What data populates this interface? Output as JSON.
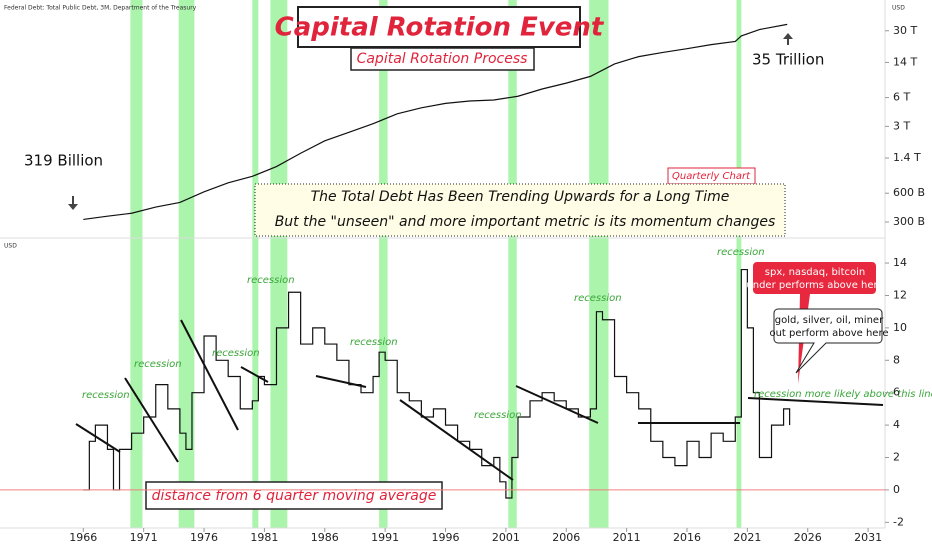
{
  "header": {
    "source": "Federal Debt: Total Public Debt, 3M, Department of the Treasury",
    "currency_top": "USD",
    "currency_bottom": "USD",
    "title": "Capital Rotation Event",
    "subtitle": "Capital Rotation Process"
  },
  "annotations": {
    "start_label": "319 Billion",
    "end_label": "35 Trillion",
    "period": "Quarterly Chart",
    "note_lines": [
      "The Total Debt Has Been Trending Upwards for a Long Time",
      "But the \"unseen\" and more important metric is its momentum changes"
    ],
    "oscillator_label": "distance from 6 quarter moving average",
    "recession_labels": [
      "recession",
      "recession",
      "recession",
      "recession",
      "recession",
      "recession",
      "recession",
      "recession"
    ],
    "threshold_label": "recession more likely above this line",
    "red_callout": [
      "spx, nasdaq, bitcoin",
      "under performs above here"
    ],
    "white_callout": [
      "gold, silver, oil, miner",
      "out perform above here"
    ]
  },
  "chart_data": [
    {
      "type": "line",
      "log_scale": true,
      "color": "#111111",
      "xlim": [
        1959.1,
        2032.4
      ],
      "ylim": [
        0.214,
        60
      ],
      "yticks": [
        {
          "value": 0.3,
          "label": "300 B"
        },
        {
          "value": 0.6,
          "label": "600 B"
        },
        {
          "value": 1.4,
          "label": "1.4 T"
        },
        {
          "value": 3,
          "label": "3 T"
        },
        {
          "value": 6,
          "label": "6 T"
        },
        {
          "value": 14,
          "label": "14 T"
        },
        {
          "value": 30,
          "label": "30 T"
        }
      ],
      "x": [
        1966,
        1968,
        1970,
        1972,
        1974,
        1976,
        1978,
        1980,
        1982,
        1984,
        1986,
        1988,
        1990,
        1992,
        1994,
        1996,
        1998,
        2000,
        2002,
        2004,
        2006,
        2008,
        2010,
        2012,
        2014,
        2016,
        2018,
        2020,
        2020.5,
        2022,
        2024.3
      ],
      "values": [
        0.319,
        0.345,
        0.37,
        0.43,
        0.48,
        0.62,
        0.77,
        0.9,
        1.14,
        1.57,
        2.12,
        2.6,
        3.2,
        4.06,
        4.69,
        5.22,
        5.53,
        5.66,
        6.2,
        7.38,
        8.5,
        10,
        13.5,
        16.1,
        17.8,
        19.5,
        21.5,
        23.2,
        26.5,
        30.9,
        35
      ]
    },
    {
      "type": "line",
      "step": true,
      "color": "#111111",
      "xlim": [
        1959.1,
        2032.4
      ],
      "ylim": [
        -2.35,
        15.3
      ],
      "yticks": [
        -2,
        0,
        2,
        4,
        6,
        8,
        10,
        12,
        14
      ],
      "xticks": [
        1966,
        1971,
        1976,
        1981,
        1986,
        1991,
        1996,
        2001,
        2006,
        2011,
        2016,
        2021,
        2026,
        2031
      ],
      "recession_color": "#8ff08f",
      "recessions": [
        [
          1969.9,
          1970.9
        ],
        [
          1973.9,
          1975.2
        ],
        [
          1980.0,
          1980.5
        ],
        [
          1981.5,
          1982.9
        ],
        [
          1990.5,
          1991.2
        ],
        [
          2001.2,
          2001.9
        ],
        [
          2007.9,
          2009.5
        ],
        [
          2020.1,
          2020.5
        ]
      ],
      "x": [
        1966,
        1966.5,
        1967,
        1968,
        1968.5,
        1969,
        1970,
        1971,
        1972,
        1973,
        1974,
        1974.5,
        1975,
        1976,
        1977,
        1978,
        1979,
        1980,
        1980.5,
        1981,
        1982,
        1983,
        1984,
        1985,
        1986,
        1987,
        1988,
        1989,
        1990,
        1990.5,
        1991,
        1992,
        1993,
        1994,
        1995,
        1996,
        1997,
        1998,
        1999,
        2000,
        2000.5,
        2001,
        2001.5,
        2002,
        2003,
        2004,
        2005,
        2006,
        2007,
        2008,
        2008.5,
        2009,
        2010,
        2011,
        2012,
        2013,
        2014,
        2015,
        2016,
        2017,
        2018,
        2019,
        2020,
        2020.5,
        2021,
        2021.5,
        2022,
        2023,
        2024,
        2024.5
      ],
      "values": [
        0,
        3,
        4,
        2.5,
        0,
        2.5,
        3.5,
        4.5,
        6.5,
        5,
        3.5,
        2.5,
        6,
        9.5,
        8,
        7,
        5,
        5.5,
        7,
        6.5,
        10,
        12.2,
        9,
        10,
        9,
        8,
        6.5,
        6,
        7,
        8.5,
        8,
        6,
        5.5,
        4.5,
        5,
        4,
        3,
        2.5,
        1.5,
        2,
        0.5,
        -0.5,
        2,
        4.5,
        5.5,
        6,
        5.5,
        5,
        4.5,
        5,
        11,
        10.5,
        7,
        6,
        5,
        3,
        2,
        1.5,
        3,
        2,
        3.5,
        3,
        4.5,
        13.6,
        10,
        6,
        2,
        4,
        5,
        4
      ]
    }
  ]
}
